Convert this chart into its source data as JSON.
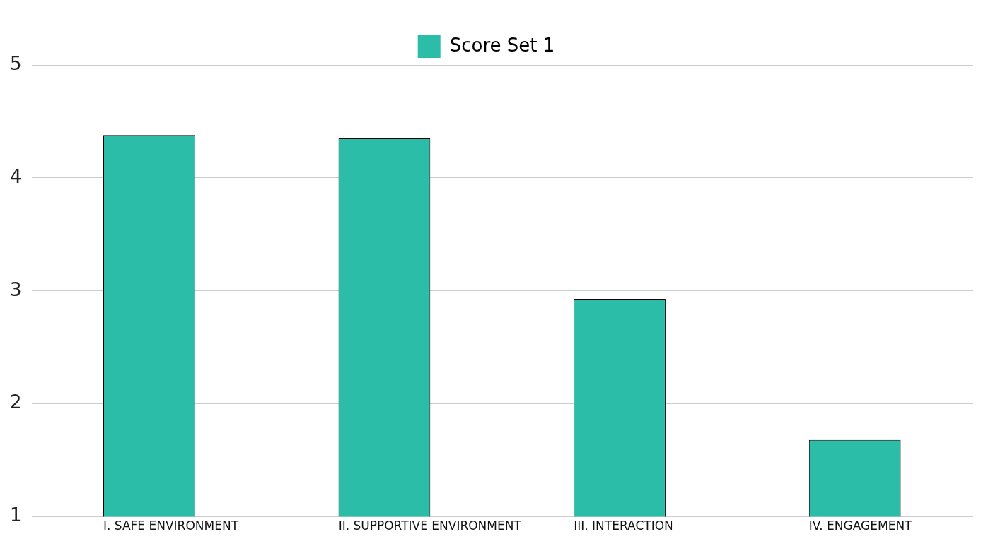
{
  "chart_data": {
    "type": "bar",
    "categories": [
      "I. SAFE ENVIRONMENT",
      "II. SUPPORTIVE ENVIRONMENT",
      "III. INTERACTION",
      "IV. ENGAGEMENT"
    ],
    "series": [
      {
        "name": "Score Set 1",
        "color": "#2bbda8",
        "values": [
          4.38,
          4.35,
          2.93,
          1.68
        ]
      }
    ],
    "ylim": [
      1,
      5
    ],
    "yticks": [
      1,
      2,
      3,
      4,
      5
    ],
    "grid": "y",
    "legend": "top"
  }
}
